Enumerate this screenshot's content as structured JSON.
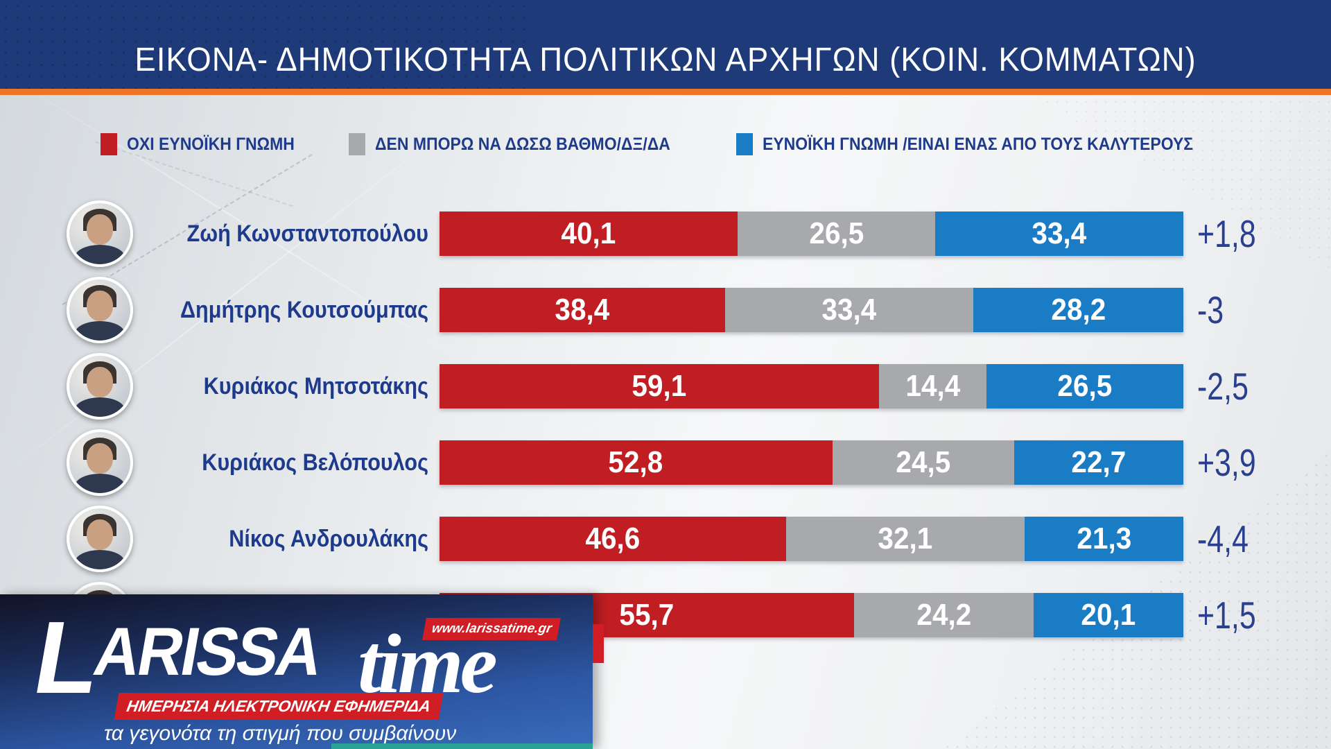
{
  "header": {
    "title": "ΕΙΚΟΝΑ- ΔΗΜΟΤΙΚΟΤΗΤΑ ΠΟΛΙΤΙΚΩΝ ΑΡΧΗΓΩΝ (ΚΟΙΝ. ΚΟΜΜΑΤΩΝ)"
  },
  "colors": {
    "header": "#1e3a78",
    "accent": "#ef7627",
    "negative": "#c01e23",
    "neutral": "#a7a9ac",
    "positive": "#1a7cc4",
    "navy_text": "#1d3a8c",
    "logo_red": "#d11d24",
    "teal": "#2aa396"
  },
  "legend": [
    {
      "label": "ΟΧΙ ΕΥΝΟΪΚΗ ΓΝΩΜΗ",
      "color": "#c01e23"
    },
    {
      "label": "ΔΕΝ ΜΠΟΡΩ ΝΑ ΔΩΣΩ ΒΑΘΜΟ/ΔΞ/ΔΑ",
      "color": "#a7a9ac"
    },
    {
      "label": "ΕΥΝΟΪΚΗ ΓΝΩΜΗ /ΕΙΝΑΙ ΕΝΑΣ ΑΠΟ ΤΟΥΣ ΚΑΛΥΤΕΡΟΥΣ",
      "color": "#1a7cc4"
    }
  ],
  "chart_data": {
    "type": "bar",
    "stacked": true,
    "orientation": "horizontal",
    "value_range": [
      0,
      100
    ],
    "decimal_separator": ",",
    "categories": [
      "Ζωή Κωνσταντοπούλου",
      "Δημήτρης Κουτσούμπας",
      "Κυριάκος Μητσοτάκης",
      "Κυριάκος Βελόπουλος",
      "Νίκος Ανδρουλάκης",
      ""
    ],
    "series": [
      {
        "name": "ΟΧΙ ΕΥΝΟΪΚΗ ΓΝΩΜΗ",
        "color": "#c01e23",
        "values": [
          40.1,
          38.4,
          59.1,
          52.8,
          46.6,
          55.7
        ]
      },
      {
        "name": "ΔΕΝ ΜΠΟΡΩ ΝΑ ΔΩΣΩ ΒΑΘΜΟ/ΔΞ/ΔΑ",
        "color": "#a7a9ac",
        "values": [
          26.5,
          33.4,
          14.4,
          24.5,
          32.1,
          24.2
        ]
      },
      {
        "name": "ΕΥΝΟΪΚΗ ΓΝΩΜΗ /ΕΙΝΑΙ ΕΝΑΣ ΑΠΟ ΤΟΥΣ ΚΑΛΥΤΕΡΟΥΣ",
        "color": "#1a7cc4",
        "values": [
          33.4,
          28.2,
          26.5,
          22.7,
          21.3,
          20.1
        ]
      }
    ],
    "deltas": [
      "+1,8",
      "-3",
      "-2,5",
      "+3,9",
      "-4,4",
      "+1,5"
    ],
    "legend_position": "top",
    "grid": false
  },
  "logo": {
    "brand_main_initial": "L",
    "brand_main_rest": "ARISSA",
    "brand_secondary": "time",
    "url": "www.larissatime.gr",
    "subtitle": "ΗΜΕΡΗΣΙΑ ΗΛΕΚΤΡΟΝΙΚΗ ΕΦΗΜΕΡΙΔΑ",
    "tagline": "τα γεγονότα τη στιγμή που συμβαίνουν"
  }
}
